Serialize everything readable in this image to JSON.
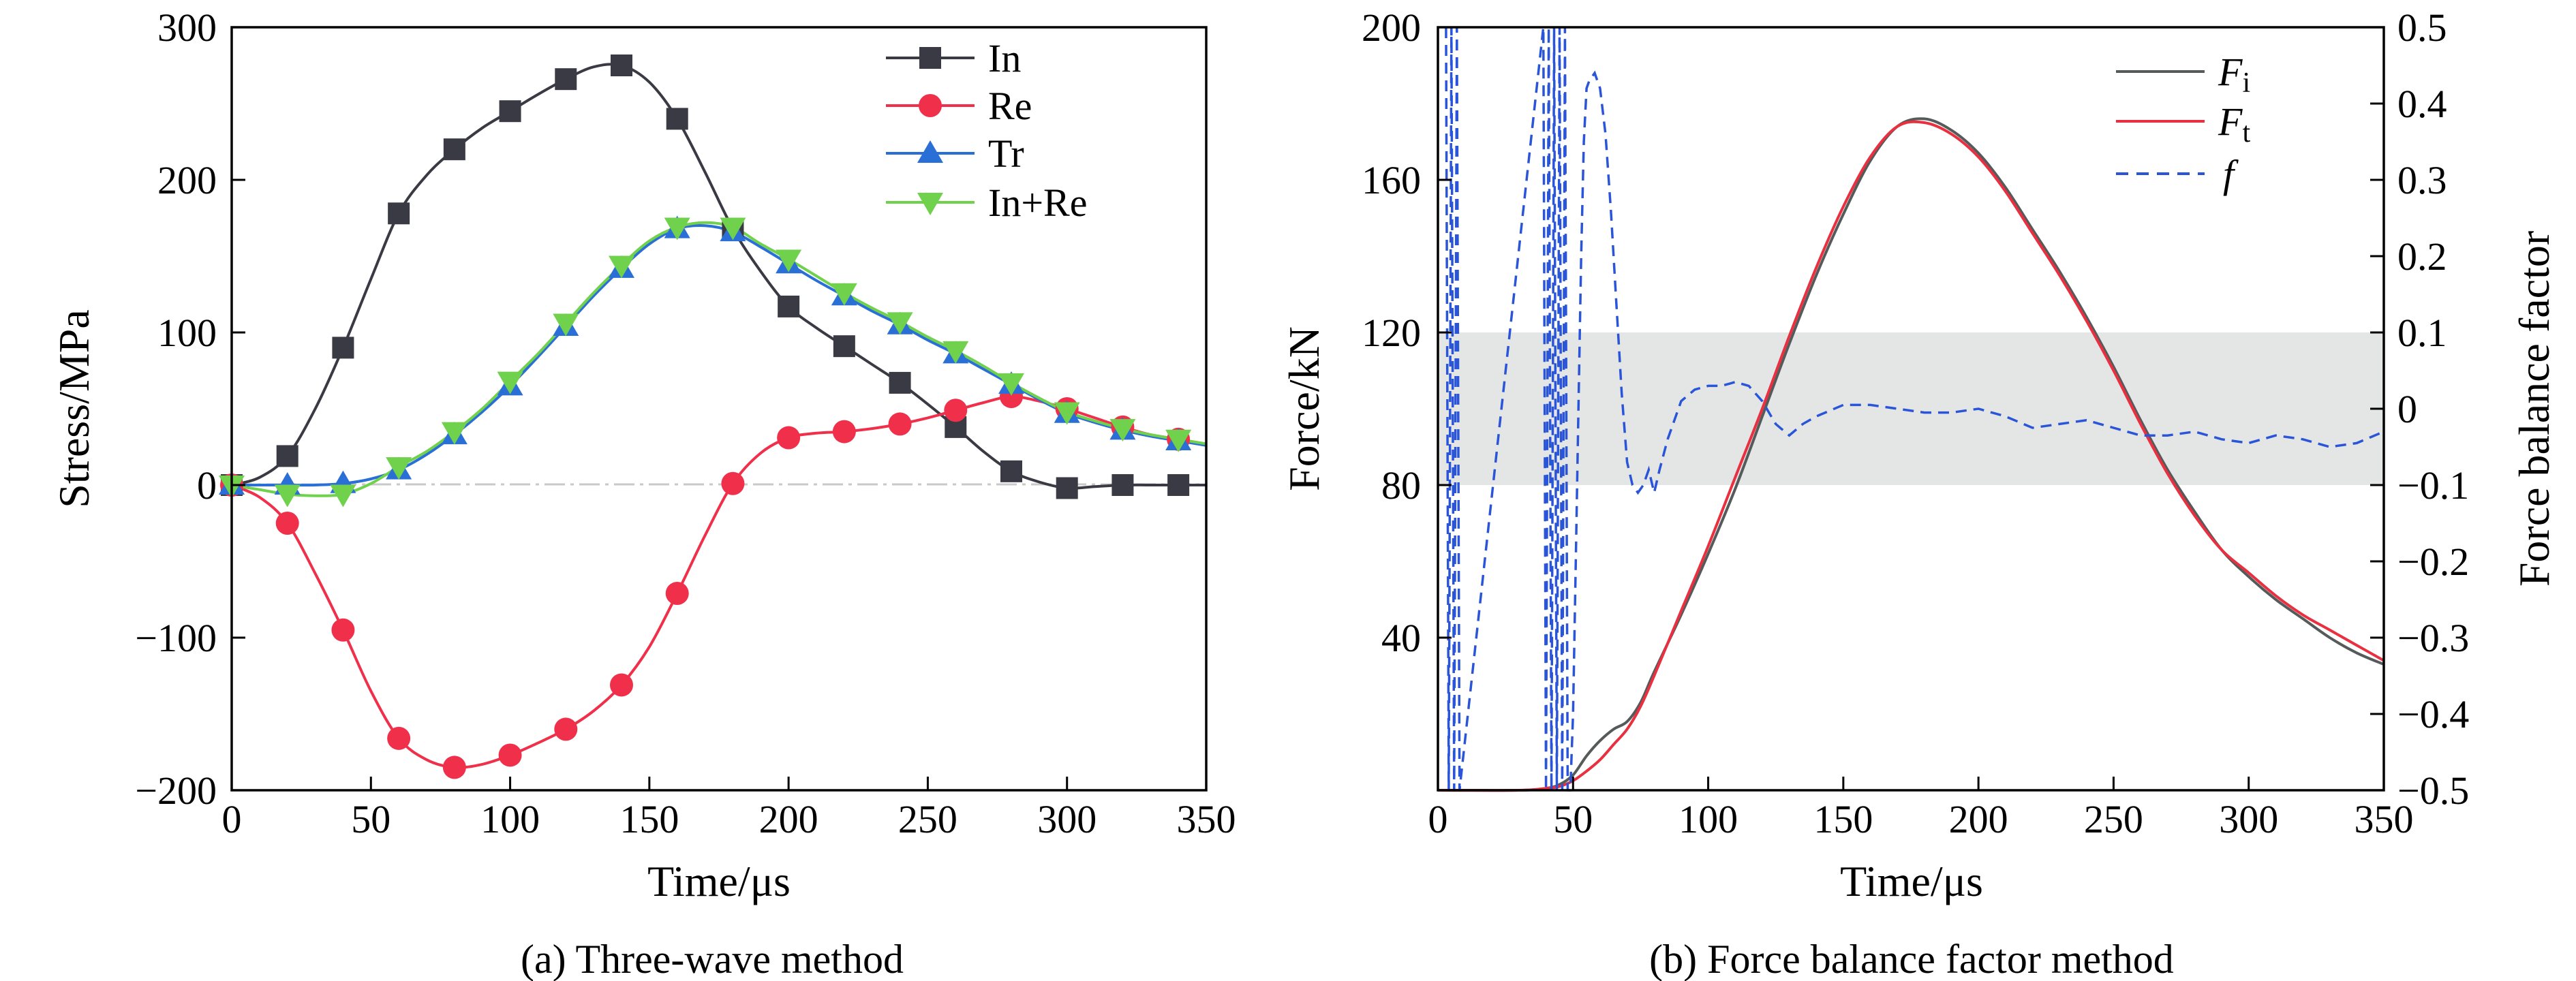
{
  "chart_data": [
    {
      "type": "line",
      "caption": "(a) Three-wave method",
      "xlabel": "Time/μs",
      "ylabel": "Stress/MPa",
      "xlim": [
        0,
        350
      ],
      "ylim": [
        -200,
        300
      ],
      "xticks": [
        "0",
        "50",
        "100",
        "150",
        "200",
        "250",
        "300",
        "350"
      ],
      "yticks": [
        "−200",
        "−100",
        "0",
        "100",
        "200",
        "300"
      ],
      "legend_position": "top-right",
      "zero_reference_line": true,
      "series": [
        {
          "name": "In",
          "color": "#3a3a44",
          "marker": "square",
          "x": [
            0,
            20,
            40,
            60,
            80,
            100,
            120,
            140,
            160,
            180,
            200,
            220,
            240,
            260,
            280,
            300,
            320,
            340
          ],
          "y": [
            0,
            19,
            90,
            178,
            220,
            245,
            266,
            275,
            240,
            168,
            117,
            91,
            67,
            38,
            9,
            -2,
            0,
            0
          ],
          "curve_x": [
            0,
            10,
            20,
            30,
            40,
            50,
            60,
            70,
            80,
            90,
            100,
            110,
            120,
            130,
            140,
            150,
            160,
            170,
            180,
            190,
            200,
            210,
            220,
            230,
            240,
            250,
            260,
            270,
            280,
            290,
            300,
            310,
            320,
            330,
            340,
            350
          ],
          "curve_y": [
            0,
            5,
            19,
            50,
            90,
            135,
            178,
            203,
            220,
            234,
            245,
            256,
            266,
            274,
            275,
            264,
            240,
            205,
            168,
            140,
            117,
            103,
            91,
            79,
            67,
            53,
            38,
            22,
            9,
            2,
            -2,
            -1,
            0,
            0,
            0,
            0
          ]
        },
        {
          "name": "Re",
          "color": "#f0304a",
          "marker": "circle",
          "x": [
            0,
            20,
            40,
            60,
            80,
            100,
            120,
            140,
            160,
            180,
            200,
            220,
            240,
            260,
            280,
            300,
            320,
            340
          ],
          "y": [
            0,
            -25,
            -95,
            -166,
            -185,
            -177,
            -160,
            -131,
            -71,
            1,
            31,
            35,
            40,
            49,
            58,
            50,
            38,
            30
          ],
          "curve_x": [
            0,
            10,
            20,
            30,
            40,
            50,
            60,
            70,
            80,
            90,
            100,
            110,
            120,
            130,
            140,
            150,
            160,
            170,
            180,
            190,
            200,
            210,
            220,
            230,
            240,
            250,
            260,
            270,
            280,
            290,
            300,
            310,
            320,
            330,
            340,
            350
          ],
          "curve_y": [
            0,
            -8,
            -25,
            -58,
            -95,
            -135,
            -166,
            -180,
            -185,
            -183,
            -177,
            -169,
            -160,
            -148,
            -131,
            -106,
            -71,
            -33,
            1,
            21,
            31,
            34,
            35,
            37,
            40,
            44,
            49,
            54,
            58,
            55,
            50,
            44,
            38,
            33,
            30,
            26
          ]
        },
        {
          "name": "Tr",
          "color": "#2a6fd6",
          "marker": "triangle-up",
          "x": [
            0,
            20,
            40,
            60,
            80,
            100,
            120,
            140,
            160,
            180,
            200,
            220,
            240,
            260,
            280,
            300,
            320,
            340
          ],
          "y": [
            0,
            0,
            1,
            10,
            33,
            65,
            104,
            142,
            168,
            166,
            145,
            124,
            105,
            86,
            66,
            47,
            36,
            29
          ],
          "curve_x": [
            0,
            10,
            20,
            30,
            40,
            50,
            60,
            70,
            80,
            90,
            100,
            110,
            120,
            130,
            140,
            150,
            160,
            170,
            180,
            190,
            200,
            210,
            220,
            230,
            240,
            250,
            260,
            270,
            280,
            290,
            300,
            310,
            320,
            330,
            340,
            350
          ],
          "curve_y": [
            0,
            0,
            0,
            0,
            1,
            4,
            10,
            20,
            33,
            48,
            65,
            84,
            104,
            124,
            142,
            158,
            168,
            170,
            166,
            156,
            145,
            134,
            124,
            114,
            105,
            95,
            86,
            76,
            66,
            56,
            47,
            41,
            36,
            32,
            29,
            26
          ]
        },
        {
          "name": "In+Re",
          "color": "#6fd14c",
          "marker": "triangle-down",
          "x": [
            0,
            20,
            40,
            60,
            80,
            100,
            120,
            140,
            160,
            180,
            200,
            220,
            240,
            260,
            280,
            300,
            320,
            340
          ],
          "y": [
            0,
            -6,
            -6,
            12,
            35,
            68,
            106,
            144,
            169,
            169,
            148,
            126,
            107,
            88,
            67,
            48,
            37,
            30
          ],
          "curve_x": [
            0,
            10,
            20,
            30,
            40,
            50,
            60,
            70,
            80,
            90,
            100,
            110,
            120,
            130,
            140,
            150,
            160,
            170,
            180,
            190,
            200,
            210,
            220,
            230,
            240,
            250,
            260,
            270,
            280,
            290,
            300,
            310,
            320,
            330,
            340,
            350
          ],
          "curve_y": [
            0,
            -3,
            -6,
            -7,
            -6,
            1,
            12,
            22,
            35,
            50,
            68,
            86,
            106,
            126,
            144,
            160,
            169,
            172,
            169,
            158,
            148,
            137,
            126,
            116,
            107,
            97,
            88,
            78,
            67,
            57,
            48,
            42,
            37,
            33,
            30,
            27
          ]
        }
      ]
    },
    {
      "type": "line",
      "caption": "(b) Force balance factor method",
      "xlabel": "Time/μs",
      "ylabel": "Force/kN",
      "y2label": "Force balance factor",
      "xlim": [
        0,
        350
      ],
      "ylim": [
        0,
        200
      ],
      "y2lim": [
        -0.5,
        0.5
      ],
      "xticks": [
        "0",
        "50",
        "100",
        "150",
        "200",
        "250",
        "300",
        "350"
      ],
      "yticks": [
        "40",
        "80",
        "120",
        "160",
        "200"
      ],
      "y2ticks": [
        "−0.5",
        "−0.4",
        "−0.3",
        "−0.2",
        "−0.1",
        "0",
        "0.1",
        "0.2",
        "0.3",
        "0.4",
        "0.5"
      ],
      "legend_position": "top-right",
      "shaded_band_y2": [
        -0.1,
        0.1
      ],
      "series": [
        {
          "name": "F",
          "subscript": "i",
          "color": "#555a5a",
          "style": "solid",
          "axis": "left",
          "x": [
            0,
            30,
            40,
            45,
            50,
            55,
            60,
            65,
            70,
            75,
            80,
            90,
            100,
            110,
            120,
            130,
            140,
            150,
            160,
            170,
            180,
            190,
            200,
            210,
            220,
            230,
            240,
            250,
            260,
            270,
            280,
            290,
            300,
            310,
            320,
            330,
            340,
            350
          ],
          "y": [
            0,
            0,
            0.5,
            1.5,
            4,
            9,
            13,
            16,
            18,
            23,
            31,
            46,
            62,
            79,
            98,
            117,
            135,
            151,
            165,
            174,
            176,
            173,
            167,
            158,
            147,
            136,
            124,
            111,
            97,
            84,
            73,
            63,
            56,
            50,
            45,
            40,
            36,
            33
          ]
        },
        {
          "name": "F",
          "subscript": "t",
          "color": "#e83040",
          "style": "solid",
          "axis": "left",
          "x": [
            0,
            30,
            40,
            45,
            50,
            55,
            60,
            65,
            70,
            75,
            80,
            90,
            100,
            110,
            120,
            130,
            140,
            150,
            160,
            170,
            180,
            190,
            200,
            210,
            220,
            230,
            240,
            250,
            260,
            270,
            280,
            290,
            300,
            310,
            320,
            330,
            340,
            350
          ],
          "y": [
            0,
            0,
            0.5,
            1,
            2.5,
            5,
            8,
            12,
            16,
            22,
            30,
            47,
            64,
            82,
            100,
            119,
            137,
            153,
            166,
            174,
            175,
            172,
            166,
            157,
            146,
            135,
            123,
            110,
            96,
            83,
            72,
            63,
            57,
            51,
            46,
            42,
            38,
            34
          ]
        },
        {
          "name": "f",
          "color": "#2a55d8",
          "style": "dashed",
          "axis": "right",
          "x": [
            3,
            4,
            5,
            6,
            7,
            8,
            39,
            40,
            41,
            42,
            43,
            44,
            45,
            46,
            47,
            48,
            49,
            50,
            51,
            52,
            53,
            54,
            55,
            56,
            58,
            60,
            62,
            64,
            66,
            68,
            70,
            72,
            74,
            76,
            78,
            80,
            82,
            85,
            90,
            95,
            100,
            105,
            110,
            115,
            120,
            125,
            130,
            135,
            140,
            150,
            160,
            170,
            180,
            190,
            200,
            210,
            220,
            230,
            240,
            250,
            260,
            270,
            280,
            290,
            300,
            310,
            320,
            330,
            340,
            350
          ],
          "y": [
            0.5,
            -0.5,
            0.5,
            -0.5,
            0.5,
            -0.5,
            0.5,
            -0.5,
            0.5,
            -0.5,
            0.5,
            -0.5,
            0.5,
            -0.5,
            0.5,
            -0.5,
            -0.5,
            -0.4,
            -0.2,
            0.0,
            0.2,
            0.35,
            0.42,
            0.43,
            0.44,
            0.42,
            0.36,
            0.26,
            0.14,
            0.02,
            -0.07,
            -0.1,
            -0.11,
            -0.1,
            -0.08,
            -0.11,
            -0.08,
            -0.04,
            0.01,
            0.025,
            0.03,
            0.03,
            0.035,
            0.03,
            0.01,
            -0.02,
            -0.035,
            -0.02,
            -0.01,
            0.005,
            0.005,
            0.0,
            -0.005,
            -0.005,
            0.0,
            -0.01,
            -0.025,
            -0.02,
            -0.015,
            -0.025,
            -0.035,
            -0.035,
            -0.03,
            -0.04,
            -0.045,
            -0.035,
            -0.04,
            -0.05,
            -0.045,
            -0.03
          ]
        }
      ]
    }
  ]
}
